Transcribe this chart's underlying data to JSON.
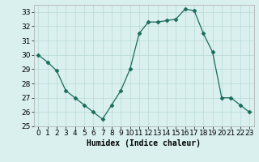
{
  "x": [
    0,
    1,
    2,
    3,
    4,
    5,
    6,
    7,
    8,
    9,
    10,
    11,
    12,
    13,
    14,
    15,
    16,
    17,
    18,
    19,
    20,
    21,
    22,
    23
  ],
  "y": [
    30.0,
    29.5,
    28.9,
    27.5,
    27.0,
    26.5,
    26.0,
    25.5,
    26.5,
    27.5,
    29.0,
    31.5,
    32.3,
    32.3,
    32.4,
    32.5,
    33.2,
    33.1,
    31.5,
    30.2,
    27.0,
    27.0,
    26.5,
    26.0
  ],
  "xlabel": "Humidex (Indice chaleur)",
  "ylim": [
    25,
    33.5
  ],
  "xlim": [
    -0.5,
    23.5
  ],
  "yticks": [
    25,
    26,
    27,
    28,
    29,
    30,
    31,
    32,
    33
  ],
  "xticks": [
    0,
    1,
    2,
    3,
    4,
    5,
    6,
    7,
    8,
    9,
    10,
    11,
    12,
    13,
    14,
    15,
    16,
    17,
    18,
    19,
    20,
    21,
    22,
    23
  ],
  "line_color": "#1a6b5a",
  "marker": "D",
  "marker_size": 2.5,
  "bg_color": "#d9f0ef",
  "grid_color": "#b8d8d5",
  "axis_label_fontsize": 7,
  "tick_fontsize": 6.5
}
